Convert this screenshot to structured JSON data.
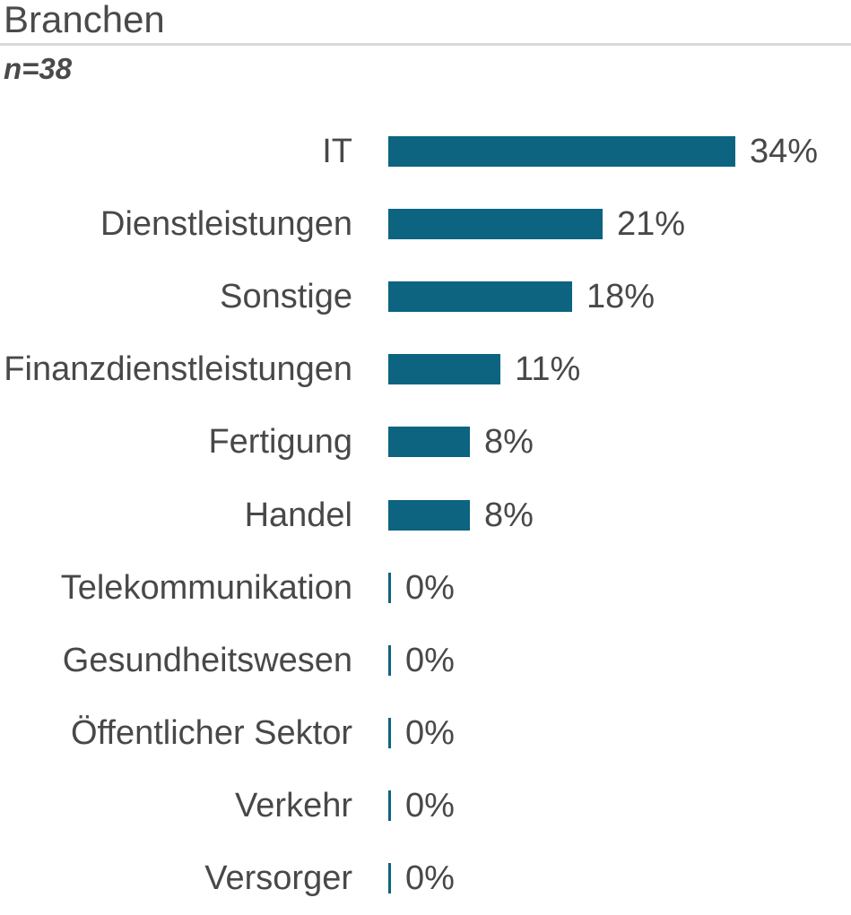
{
  "header": {
    "title": "Branchen",
    "subtitle": "n=38"
  },
  "chart_data": {
    "type": "bar",
    "orientation": "horizontal",
    "title": "Branchen",
    "subtitle": "n=38",
    "sample_size": 38,
    "categories": [
      "IT",
      "Dienstleistungen",
      "Sonstige",
      "Finanzdienstleistungen",
      "Fertigung",
      "Handel",
      "Telekommunikation",
      "Gesundheitswesen",
      "Öffentlicher Sektor",
      "Verkehr",
      "Versorger"
    ],
    "values": [
      34,
      21,
      18,
      11,
      8,
      8,
      0,
      0,
      0,
      0,
      0
    ],
    "value_suffix": "%",
    "value_labels": [
      "34%",
      "21%",
      "18%",
      "11%",
      "8%",
      "8%",
      "0%",
      "0%",
      "0%",
      "0%",
      "0%"
    ],
    "xlim": [
      0,
      34
    ],
    "grid": false,
    "legend": false,
    "bar_color": "#0d6480",
    "text_color": "#484848",
    "divider_color": "#d9d9d9",
    "background_color": "#ffffff"
  }
}
